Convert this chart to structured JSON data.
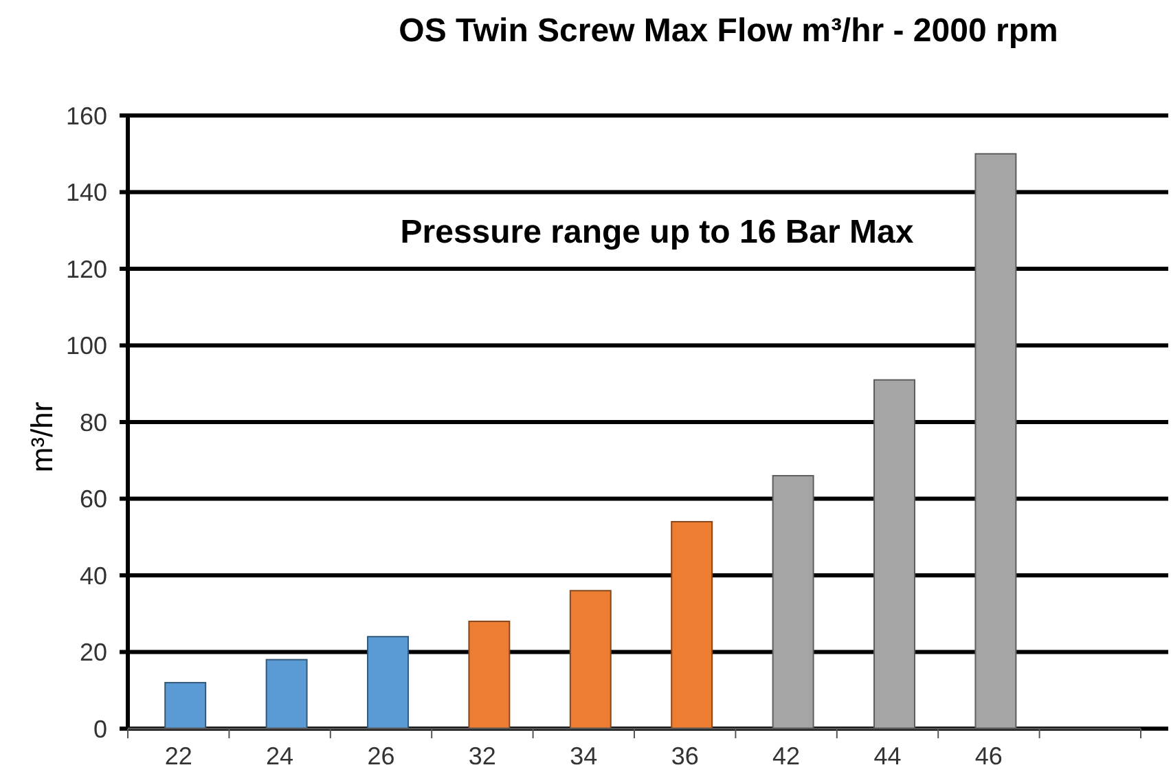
{
  "chart_data": {
    "type": "bar",
    "title": "OS Twin Screw Max Flow m³/hr - 2000 rpm",
    "ylabel": "m³/hr",
    "annotations": [
      "Pressure range up to 16 Bar Max"
    ],
    "categories": [
      "22",
      "24",
      "26",
      "32",
      "34",
      "36",
      "42",
      "44",
      "46",
      null
    ],
    "values": [
      12,
      18,
      24,
      28,
      36,
      54,
      66,
      91,
      150,
      null
    ],
    "colors": [
      "#5b9bd5",
      "#5b9bd5",
      "#5b9bd5",
      "#ed7d31",
      "#ed7d31",
      "#ed7d31",
      "#a5a5a5",
      "#a5a5a5",
      "#a5a5a5",
      null
    ],
    "ylim": [
      0,
      160
    ],
    "yticks": [
      0,
      20,
      40,
      60,
      80,
      100,
      120,
      140,
      160
    ],
    "grid": "y"
  }
}
